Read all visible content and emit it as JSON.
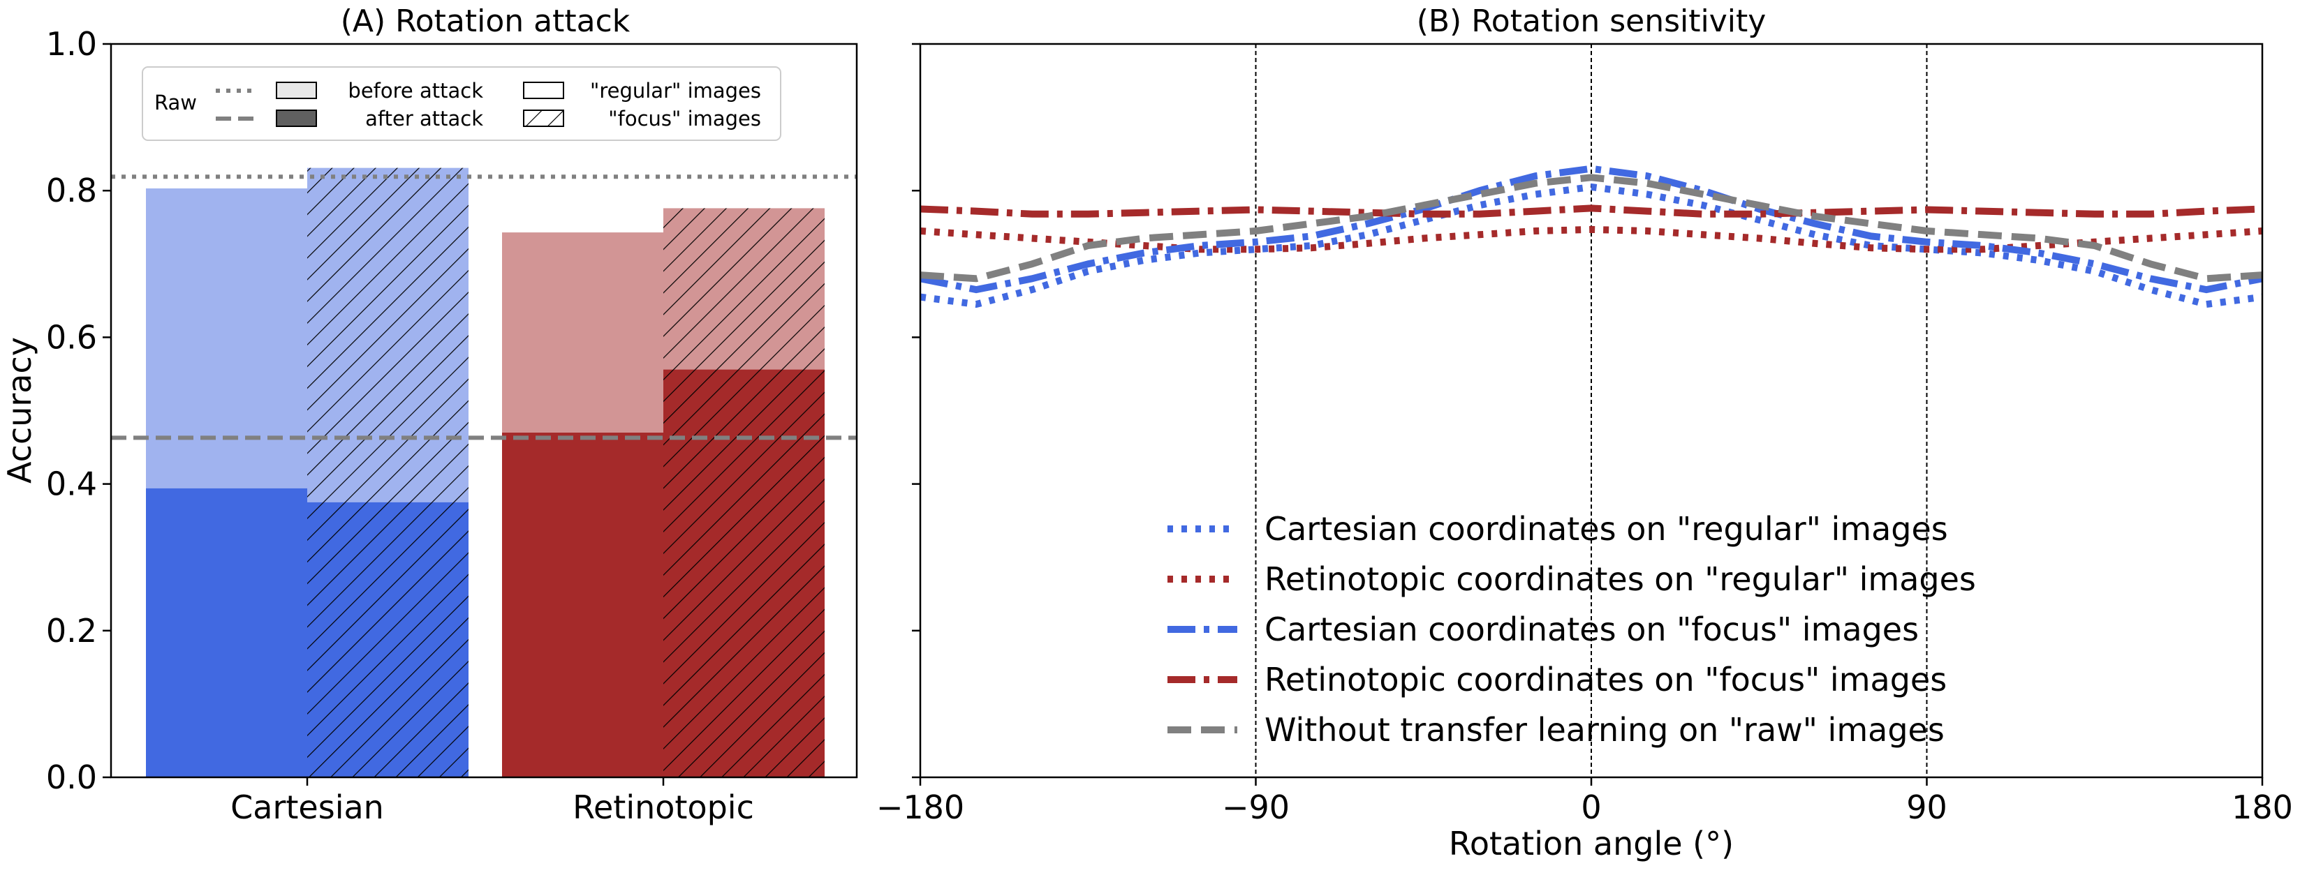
{
  "chart_data": [
    {
      "type": "bar",
      "title": "(A) Rotation attack",
      "xlabel": "",
      "ylabel": "Accuracy",
      "ylim": [
        0,
        1.0
      ],
      "yticks": [
        0.0,
        0.2,
        0.4,
        0.6,
        0.8,
        1.0
      ],
      "ytick_labels": [
        "0.0",
        "0.2",
        "0.4",
        "0.6",
        "0.8",
        "1.0"
      ],
      "categories": [
        "Cartesian",
        "Retinotopic"
      ],
      "series": [
        {
          "name": "before attack, \"regular\" images",
          "values": [
            0.803,
            0.743
          ]
        },
        {
          "name": "before attack, \"focus\" images",
          "values": [
            0.831,
            0.776
          ]
        },
        {
          "name": "after attack, \"regular\" images",
          "values": [
            0.394,
            0.47
          ]
        },
        {
          "name": "after attack, \"focus\" images",
          "values": [
            0.375,
            0.556
          ]
        }
      ],
      "reference_lines": [
        {
          "name": "Raw before attack",
          "value": 0.819,
          "style": "dotted"
        },
        {
          "name": "Raw after attack",
          "value": 0.463,
          "style": "dashed"
        }
      ],
      "legend": {
        "placement": "top",
        "raw_label": "Raw",
        "before_label": "before attack",
        "after_label": "after attack",
        "regular_label": "\"regular\" images",
        "focus_label": "\"focus\" images"
      },
      "colors": {
        "cartesian_after": "#4169e1",
        "cartesian_before": "#a0b3ef",
        "retinotopic_after": "#a52a2a",
        "retinotopic_before": "#d29595",
        "raw_line": "#808080"
      }
    },
    {
      "type": "line",
      "title": "(B) Rotation sensitivity",
      "xlabel": "Rotation angle (°)",
      "ylabel": "",
      "xlim": [
        -180,
        180
      ],
      "ylim": [
        0,
        1.0
      ],
      "xticks": [
        -180,
        -90,
        0,
        90,
        180
      ],
      "xtick_labels": [
        "−180",
        "−90",
        "0",
        "90",
        "180"
      ],
      "grid": "vertical lines at -180, -90, 0, 90",
      "legend_placement": "lower center",
      "x": [
        -180,
        -165,
        -150,
        -135,
        -120,
        -105,
        -90,
        -75,
        -60,
        -45,
        -30,
        -15,
        0,
        15,
        30,
        45,
        60,
        75,
        90,
        105,
        120,
        135,
        150,
        165,
        180
      ],
      "series": [
        {
          "name": "Cartesian coordinates on \"regular\" images",
          "color": "#4169e1",
          "style": "dotted",
          "values": [
            0.655,
            0.645,
            0.665,
            0.69,
            0.705,
            0.715,
            0.72,
            0.725,
            0.74,
            0.76,
            0.78,
            0.795,
            0.805,
            0.795,
            0.78,
            0.76,
            0.74,
            0.725,
            0.72,
            0.715,
            0.705,
            0.69,
            0.665,
            0.645,
            0.655
          ]
        },
        {
          "name": "Retinotopic coordinates on \"regular\" images",
          "color": "#a52a2a",
          "style": "dotted",
          "values": [
            0.745,
            0.74,
            0.735,
            0.73,
            0.725,
            0.72,
            0.72,
            0.722,
            0.728,
            0.735,
            0.74,
            0.745,
            0.747,
            0.745,
            0.74,
            0.735,
            0.728,
            0.722,
            0.72,
            0.72,
            0.725,
            0.73,
            0.735,
            0.74,
            0.745
          ]
        },
        {
          "name": "Cartesian coordinates on \"focus\" images",
          "color": "#4169e1",
          "style": "dashdot",
          "values": [
            0.68,
            0.665,
            0.68,
            0.7,
            0.715,
            0.725,
            0.73,
            0.738,
            0.755,
            0.775,
            0.8,
            0.82,
            0.83,
            0.82,
            0.8,
            0.775,
            0.755,
            0.738,
            0.73,
            0.725,
            0.715,
            0.7,
            0.68,
            0.665,
            0.68
          ]
        },
        {
          "name": "Retinotopic coordinates on \"focus\" images",
          "color": "#a52a2a",
          "style": "dashdot",
          "values": [
            0.775,
            0.772,
            0.768,
            0.768,
            0.77,
            0.772,
            0.774,
            0.772,
            0.77,
            0.768,
            0.768,
            0.772,
            0.776,
            0.772,
            0.768,
            0.768,
            0.77,
            0.772,
            0.774,
            0.772,
            0.77,
            0.768,
            0.768,
            0.772,
            0.775
          ]
        },
        {
          "name": "Without transfer learning on \"raw\" images",
          "color": "#808080",
          "style": "dashed",
          "values": [
            0.685,
            0.68,
            0.7,
            0.725,
            0.735,
            0.74,
            0.745,
            0.755,
            0.765,
            0.78,
            0.795,
            0.81,
            0.818,
            0.81,
            0.795,
            0.78,
            0.765,
            0.755,
            0.745,
            0.74,
            0.735,
            0.725,
            0.7,
            0.68,
            0.685
          ]
        }
      ]
    }
  ]
}
